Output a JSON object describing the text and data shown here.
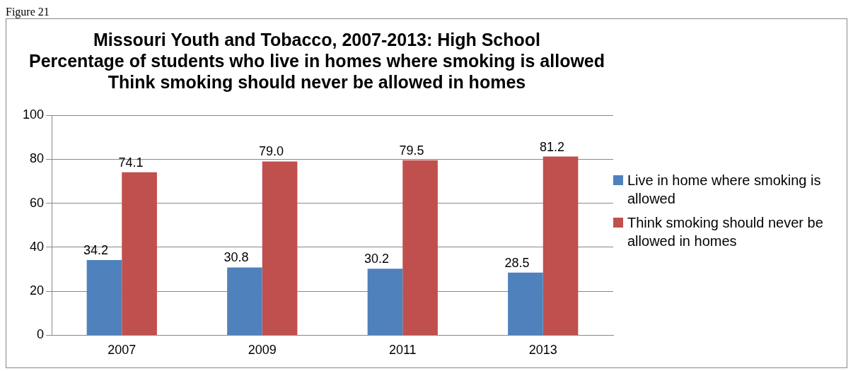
{
  "chart_data": {
    "type": "bar",
    "title": "Missouri Youth and Tobacco, 2007-2013: High School\nPercentage of students who live in homes where smoking is allowed\nThink smoking should never be allowed in homes",
    "annotations": [
      "Figure 21"
    ],
    "categories": [
      "2007",
      "2009",
      "2011",
      "2013"
    ],
    "series": [
      {
        "name": "Live in home where smoking is allowed",
        "color": "#4f81bd",
        "values": [
          34.2,
          30.8,
          30.2,
          28.5
        ],
        "value_labels": [
          "34.2",
          "30.8",
          "30.2",
          "28.5"
        ]
      },
      {
        "name": "Think smoking should never be allowed in homes",
        "color": "#c0504d",
        "values": [
          74.1,
          79.0,
          79.5,
          81.2
        ],
        "value_labels": [
          "74.1",
          "79.0",
          "79.5",
          "81.2"
        ]
      }
    ],
    "ylim": [
      0,
      100
    ],
    "yticks": [
      0,
      20,
      40,
      60,
      80,
      100
    ],
    "grid": "y",
    "legend": "right"
  }
}
